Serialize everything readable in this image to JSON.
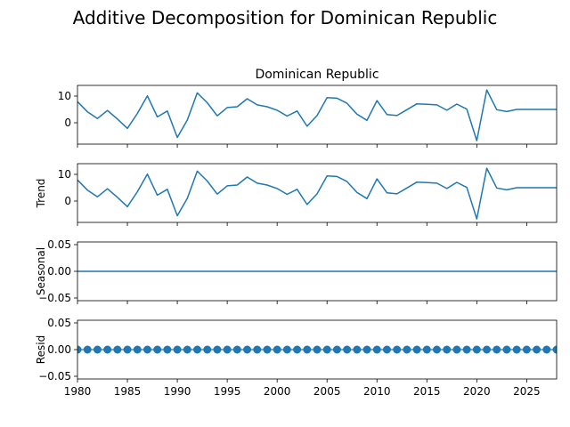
{
  "figure_title": "Additive Decomposition for Dominican Republic",
  "chart_data": [
    {
      "type": "line",
      "title": "Dominican Republic",
      "ylabel": "",
      "xlim": [
        1980,
        2028
      ],
      "ylim": [
        -8,
        14
      ],
      "yticks": [
        0,
        10
      ],
      "x": [
        1980,
        1981,
        1982,
        1983,
        1984,
        1985,
        1986,
        1987,
        1988,
        1989,
        1990,
        1991,
        1992,
        1993,
        1994,
        1995,
        1996,
        1997,
        1998,
        1999,
        2000,
        2001,
        2002,
        2003,
        2004,
        2005,
        2006,
        2007,
        2008,
        2009,
        2010,
        2011,
        2012,
        2013,
        2014,
        2015,
        2016,
        2017,
        2018,
        2019,
        2020,
        2021,
        2022,
        2023,
        2024,
        2025,
        2026,
        2027,
        2028
      ],
      "values": [
        7.9,
        4.1,
        1.6,
        4.6,
        1.4,
        -2.1,
        3.5,
        10.1,
        2.2,
        4.4,
        -5.5,
        1.0,
        11.2,
        7.5,
        2.6,
        5.7,
        6.0,
        9.0,
        6.7,
        6.0,
        4.7,
        2.5,
        4.4,
        -1.3,
        2.7,
        9.4,
        9.2,
        7.3,
        3.2,
        0.9,
        8.3,
        3.1,
        2.7,
        4.9,
        7.1,
        6.9,
        6.7,
        4.7,
        7.0,
        5.1,
        -6.7,
        12.3,
        4.9,
        4.2,
        5.0,
        5.0,
        5.0,
        5.0,
        5.0
      ],
      "color": "#1f77b4",
      "show_xticklabels": false
    },
    {
      "type": "line",
      "title": "",
      "ylabel": "Trend",
      "xlim": [
        1980,
        2028
      ],
      "ylim": [
        -8,
        14
      ],
      "yticks": [
        0,
        10
      ],
      "x": [
        1980,
        1981,
        1982,
        1983,
        1984,
        1985,
        1986,
        1987,
        1988,
        1989,
        1990,
        1991,
        1992,
        1993,
        1994,
        1995,
        1996,
        1997,
        1998,
        1999,
        2000,
        2001,
        2002,
        2003,
        2004,
        2005,
        2006,
        2007,
        2008,
        2009,
        2010,
        2011,
        2012,
        2013,
        2014,
        2015,
        2016,
        2017,
        2018,
        2019,
        2020,
        2021,
        2022,
        2023,
        2024,
        2025,
        2026,
        2027,
        2028
      ],
      "values": [
        7.9,
        4.1,
        1.6,
        4.6,
        1.4,
        -2.1,
        3.5,
        10.1,
        2.2,
        4.4,
        -5.5,
        1.0,
        11.2,
        7.5,
        2.6,
        5.7,
        6.0,
        9.0,
        6.7,
        6.0,
        4.7,
        2.5,
        4.4,
        -1.3,
        2.7,
        9.4,
        9.2,
        7.3,
        3.2,
        0.9,
        8.3,
        3.1,
        2.7,
        4.9,
        7.1,
        6.9,
        6.7,
        4.7,
        7.0,
        5.1,
        -6.7,
        12.3,
        4.9,
        4.2,
        5.0,
        5.0,
        5.0,
        5.0,
        5.0
      ],
      "color": "#1f77b4",
      "show_xticklabels": false
    },
    {
      "type": "line",
      "title": "",
      "ylabel": "Seasonal",
      "xlim": [
        1980,
        2028
      ],
      "ylim": [
        -0.055,
        0.055
      ],
      "yticks": [
        -0.05,
        0.0,
        0.05
      ],
      "ytick_labels": [
        "−0.05",
        "0.00",
        "0.05"
      ],
      "x": [
        1980,
        2028
      ],
      "values": [
        0,
        0
      ],
      "color": "#1f77b4",
      "show_xticklabels": false
    },
    {
      "type": "scatter",
      "title": "",
      "ylabel": "Resid",
      "xlim": [
        1980,
        2028
      ],
      "ylim": [
        -0.055,
        0.055
      ],
      "yticks": [
        -0.05,
        0.0,
        0.05
      ],
      "ytick_labels": [
        "−0.05",
        "0.00",
        "0.05"
      ],
      "x": [
        1980,
        1981,
        1982,
        1983,
        1984,
        1985,
        1986,
        1987,
        1988,
        1989,
        1990,
        1991,
        1992,
        1993,
        1994,
        1995,
        1996,
        1997,
        1998,
        1999,
        2000,
        2001,
        2002,
        2003,
        2004,
        2005,
        2006,
        2007,
        2008,
        2009,
        2010,
        2011,
        2012,
        2013,
        2014,
        2015,
        2016,
        2017,
        2018,
        2019,
        2020,
        2021,
        2022,
        2023,
        2024,
        2025,
        2026,
        2027,
        2028
      ],
      "values": [
        0,
        0,
        0,
        0,
        0,
        0,
        0,
        0,
        0,
        0,
        0,
        0,
        0,
        0,
        0,
        0,
        0,
        0,
        0,
        0,
        0,
        0,
        0,
        0,
        0,
        0,
        0,
        0,
        0,
        0,
        0,
        0,
        0,
        0,
        0,
        0,
        0,
        0,
        0,
        0,
        0,
        0,
        0,
        0,
        0,
        0,
        0,
        0,
        0
      ],
      "color": "#1f77b4",
      "baseline": true,
      "show_xticklabels": true,
      "xticks": [
        1980,
        1985,
        1990,
        1995,
        2000,
        2005,
        2010,
        2015,
        2020,
        2025
      ]
    }
  ]
}
